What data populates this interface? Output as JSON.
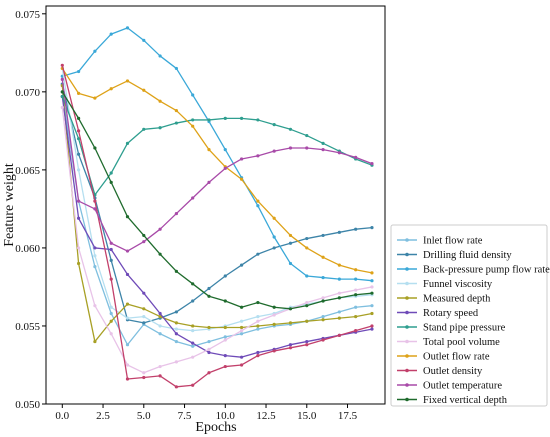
{
  "chart_data": {
    "type": "line",
    "xlabel": "Epochs",
    "ylabel": "Feature weight",
    "xlim": [
      -1,
      19.8
    ],
    "ylim": [
      0.05,
      0.0755
    ],
    "xticks": [
      0.0,
      2.5,
      5.0,
      7.5,
      10.0,
      12.5,
      15.0,
      17.5
    ],
    "xtick_labels": [
      "0.0",
      "2.5",
      "5.0",
      "7.5",
      "10.0",
      "12.5",
      "15.0",
      "17.5"
    ],
    "yticks": [
      0.05,
      0.055,
      0.06,
      0.065,
      0.07,
      0.075
    ],
    "ytick_labels": [
      "0.050",
      "0.055",
      "0.060",
      "0.065",
      "0.070",
      "0.075"
    ],
    "grid": false,
    "legend_placement": "lower-right outside",
    "x": [
      0,
      1,
      2,
      3,
      4,
      5,
      6,
      7,
      8,
      9,
      10,
      11,
      12,
      13,
      14,
      15,
      16,
      17,
      18,
      19
    ],
    "series": [
      {
        "name": "Inlet flow rate",
        "color": "#7fbfdf",
        "values": [
          0.07,
          0.063,
          0.0588,
          0.0558,
          0.0538,
          0.0551,
          0.0545,
          0.054,
          0.0537,
          0.054,
          0.0543,
          0.0545,
          0.0548,
          0.055,
          0.0551,
          0.0553,
          0.0556,
          0.0559,
          0.0562,
          0.0563
        ]
      },
      {
        "name": "Drilling fluid density",
        "color": "#3d84a8",
        "values": [
          0.0705,
          0.066,
          0.0632,
          0.0592,
          0.0554,
          0.0552,
          0.0555,
          0.0559,
          0.0566,
          0.0574,
          0.0582,
          0.0589,
          0.0596,
          0.06,
          0.0603,
          0.0606,
          0.0608,
          0.061,
          0.0612,
          0.0613
        ]
      },
      {
        "name": "Back-pressure pump flow rate",
        "color": "#3aa8d8",
        "values": [
          0.071,
          0.0713,
          0.0726,
          0.0737,
          0.0741,
          0.0733,
          0.0723,
          0.0715,
          0.0698,
          0.0681,
          0.0663,
          0.0645,
          0.0627,
          0.0607,
          0.059,
          0.0582,
          0.0581,
          0.058,
          0.058,
          0.0579
        ]
      },
      {
        "name": "Funnel viscosity",
        "color": "#b5dff0",
        "values": [
          0.0715,
          0.065,
          0.0595,
          0.0562,
          0.0555,
          0.0556,
          0.055,
          0.0548,
          0.0547,
          0.0548,
          0.055,
          0.0553,
          0.0556,
          0.0558,
          0.0562,
          0.0564,
          0.0566,
          0.0568,
          0.0569,
          0.057
        ]
      },
      {
        "name": "Measured depth",
        "color": "#a8a025",
        "values": [
          0.0704,
          0.059,
          0.054,
          0.0553,
          0.0564,
          0.0561,
          0.0556,
          0.0552,
          0.055,
          0.0549,
          0.0549,
          0.0549,
          0.055,
          0.0551,
          0.0552,
          0.0553,
          0.0554,
          0.0555,
          0.0556,
          0.0558
        ]
      },
      {
        "name": "Rotary speed",
        "color": "#6f4bb8",
        "values": [
          0.0697,
          0.0619,
          0.06,
          0.0599,
          0.0583,
          0.0571,
          0.0558,
          0.0545,
          0.0539,
          0.0533,
          0.0531,
          0.053,
          0.0533,
          0.0535,
          0.0538,
          0.054,
          0.0542,
          0.0544,
          0.0546,
          0.0548
        ]
      },
      {
        "name": "Stand pipe pressure",
        "color": "#2e9e8f",
        "values": [
          0.0697,
          0.067,
          0.0634,
          0.0648,
          0.0667,
          0.0676,
          0.0677,
          0.068,
          0.0682,
          0.0682,
          0.0683,
          0.0683,
          0.0682,
          0.0679,
          0.0676,
          0.0672,
          0.0667,
          0.0662,
          0.0657,
          0.0653
        ]
      },
      {
        "name": "Total pool volume",
        "color": "#e8c3e8",
        "values": [
          0.069,
          0.06,
          0.0563,
          0.0545,
          0.0525,
          0.052,
          0.0524,
          0.0527,
          0.053,
          0.0535,
          0.0541,
          0.0547,
          0.0553,
          0.0557,
          0.0561,
          0.0565,
          0.0568,
          0.0571,
          0.0573,
          0.0575
        ]
      },
      {
        "name": "Outlet flow rate",
        "color": "#dea218",
        "values": [
          0.0715,
          0.0699,
          0.0696,
          0.0702,
          0.0707,
          0.0701,
          0.0694,
          0.0688,
          0.0678,
          0.0663,
          0.0652,
          0.0644,
          0.063,
          0.0619,
          0.0608,
          0.06,
          0.0594,
          0.0589,
          0.0586,
          0.0584
        ]
      },
      {
        "name": "Outlet density",
        "color": "#c2406b",
        "values": [
          0.0717,
          0.0675,
          0.063,
          0.058,
          0.0516,
          0.0517,
          0.0518,
          0.0511,
          0.0512,
          0.052,
          0.0524,
          0.0525,
          0.0531,
          0.0534,
          0.0536,
          0.0538,
          0.0541,
          0.0544,
          0.0547,
          0.055
        ]
      },
      {
        "name": "Outlet temperature",
        "color": "#a84aa8",
        "values": [
          0.0708,
          0.063,
          0.0625,
          0.0603,
          0.0598,
          0.0604,
          0.0612,
          0.0622,
          0.0632,
          0.0642,
          0.0651,
          0.0657,
          0.0659,
          0.0662,
          0.0664,
          0.0664,
          0.0663,
          0.0661,
          0.0658,
          0.0654
        ]
      },
      {
        "name": "Fixed vertical depth",
        "color": "#1f6b2d",
        "values": [
          0.07,
          0.0683,
          0.0664,
          0.0642,
          0.062,
          0.0608,
          0.0596,
          0.0585,
          0.0577,
          0.0569,
          0.0566,
          0.0562,
          0.0565,
          0.0562,
          0.0561,
          0.0563,
          0.0566,
          0.0568,
          0.057,
          0.0571
        ]
      }
    ]
  }
}
